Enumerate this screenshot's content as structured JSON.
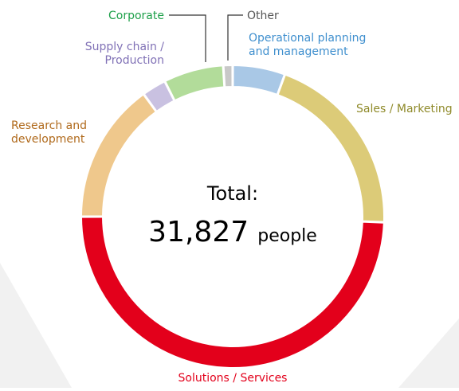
{
  "chart_data": {
    "type": "pie",
    "style": "donut",
    "center_text": {
      "line1": "Total:",
      "total_value": "31,827",
      "total_unit": "people"
    },
    "slices": [
      {
        "label": "Operational planning\nand management",
        "value": 5.6,
        "color": "#a9c8e6",
        "label_color": "#3f8fce"
      },
      {
        "label": "Sales / Marketing",
        "value": 20.0,
        "color": "#dccb78",
        "label_color": "#8f8a2a"
      },
      {
        "label": "Solutions / Services",
        "value": 49.4,
        "color": "#e3001b",
        "label_color": "#e3001b"
      },
      {
        "label": "Research and\ndevelopment",
        "value": 15.0,
        "color": "#efc88c",
        "label_color": "#b06a1c"
      },
      {
        "label": "Supply chain /\nProduction",
        "value": 2.6,
        "color": "#c9c1e1",
        "label_color": "#8071b6"
      },
      {
        "label": "Corporate",
        "value": 6.4,
        "color": "#b2dc9a",
        "label_color": "#1ea04a"
      },
      {
        "label": "Other",
        "value": 1.0,
        "color": "#c8c8c8",
        "label_color": "#555555"
      }
    ]
  }
}
